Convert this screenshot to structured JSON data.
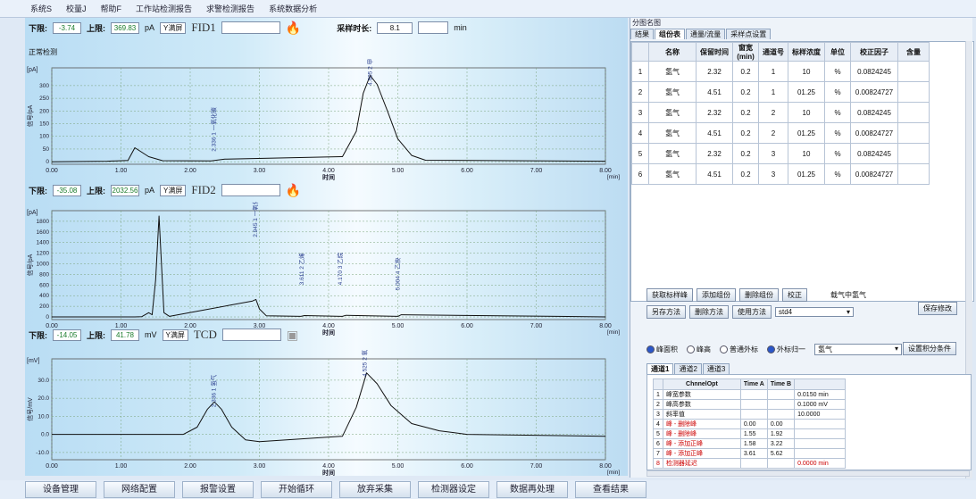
{
  "menu": [
    "系统S",
    "校量J",
    "帮助F",
    "工作站检测报告",
    "求警检测报告",
    "系统数据分析"
  ],
  "channels": [
    {
      "low_label": "下限:",
      "low": "-3.74",
      "high_label": "上限:",
      "high": "369.83",
      "unit": "pA",
      "view": "Y满屏",
      "name": "FID1",
      "extra": {
        "label": "采样时长:",
        "value": "8.1",
        "unit": "min"
      },
      "status": "正常检测",
      "yunit": "[pA]",
      "ylabel": "信号/pA",
      "yticks": [
        "300",
        "250",
        "200",
        "150",
        "100",
        "50",
        "0"
      ],
      "peaks_labels": [
        "2.336 1 一氧化碳",
        "4.605 2 甲烷"
      ]
    },
    {
      "low_label": "下限:",
      "low": "-35.08",
      "high_label": "上限:",
      "high": "2032.56",
      "unit": "pA",
      "view": "Y满屏",
      "name": "FID2",
      "yunit": "[pA]",
      "ylabel": "信号/pA",
      "yticks": [
        "1800",
        "1600",
        "1400",
        "1200",
        "1000",
        "800",
        "600",
        "400",
        "200",
        "0"
      ],
      "peaks_labels": [
        "2.945 1 一氧化碳",
        "3.611 2 乙烯",
        "4.170 3 乙烷",
        "5.004 4 乙炔"
      ]
    },
    {
      "low_label": "下限:",
      "low": "-14.05",
      "high_label": "上限:",
      "high": "41.78",
      "unit": "mV",
      "view": "Y满屏",
      "name": "TCD",
      "yunit": "[mV]",
      "ylabel": "信号/mV",
      "yticks": [
        "30.0",
        "20.0",
        "10.0",
        "0.0",
        "-10.0"
      ],
      "peaks_labels": [
        "2.336 1 氢气",
        "4.525 2 氧气"
      ]
    }
  ],
  "xaxis": {
    "ticks": [
      "0.00",
      "1.00",
      "2.00",
      "3.00",
      "4.00",
      "5.00",
      "6.00",
      "7.00",
      "8.00"
    ],
    "label": "时间",
    "unit": "[min]"
  },
  "chart_data": [
    {
      "type": "line",
      "title": "FID1",
      "xlabel": "时间",
      "ylabel": "信号/pA",
      "xlim": [
        0,
        8
      ],
      "ylim": [
        -10,
        370
      ],
      "series": [
        {
          "x": [
            0,
            0.8,
            1.1,
            1.2,
            1.4,
            1.6,
            2.3,
            2.5,
            4.2,
            4.4,
            4.5,
            4.6,
            4.7,
            4.85,
            5.0,
            5.2,
            5.4,
            8.0
          ],
          "y": [
            0,
            2,
            5,
            55,
            20,
            4,
            3,
            10,
            20,
            120,
            270,
            340,
            305,
            200,
            90,
            25,
            6,
            2
          ]
        }
      ]
    },
    {
      "type": "line",
      "title": "FID2",
      "xlabel": "时间",
      "ylabel": "信号/pA",
      "xlim": [
        0,
        8
      ],
      "ylim": [
        -50,
        2000
      ],
      "series": [
        {
          "x": [
            0,
            1.2,
            1.3,
            1.4,
            1.45,
            1.5,
            1.55,
            1.62,
            1.7,
            2.9,
            2.95,
            3.0,
            3.1,
            3.6,
            3.65,
            4.2,
            4.25,
            5.0,
            5.05,
            8.0
          ],
          "y": [
            0,
            0,
            5,
            80,
            40,
            700,
            1900,
            80,
            10,
            300,
            330,
            150,
            20,
            10,
            25,
            10,
            30,
            10,
            40,
            0
          ]
        }
      ]
    },
    {
      "type": "line",
      "title": "TCD",
      "xlabel": "时间",
      "ylabel": "信号/mV",
      "xlim": [
        0,
        8
      ],
      "ylim": [
        -14,
        41.8
      ],
      "series": [
        {
          "x": [
            0,
            1.9,
            2.1,
            2.25,
            2.35,
            2.45,
            2.6,
            2.8,
            3.0,
            4.2,
            4.4,
            4.55,
            4.7,
            4.9,
            5.2,
            5.6,
            6.0,
            8.0
          ],
          "y": [
            0,
            0,
            4,
            14,
            18,
            14,
            4,
            -3,
            -4,
            -1,
            15,
            34,
            28,
            16,
            6,
            2,
            0,
            -1
          ]
        }
      ]
    }
  ],
  "right": {
    "title": "分图名图",
    "tabs": [
      "结果",
      "组份表",
      "通量/流量",
      "采样点设置"
    ],
    "table": {
      "headers": [
        "",
        "名称",
        "保留时间",
        "窗宽(min)",
        "通道号",
        "标样浓度",
        "单位",
        "校正因子",
        "含量"
      ],
      "rows": [
        [
          "1",
          "氢气",
          "2.32",
          "0.2",
          "1",
          "10",
          "%",
          "0.0824245",
          ""
        ],
        [
          "2",
          "氢气",
          "4.51",
          "0.2",
          "1",
          "01.25",
          "%",
          "0.00824727",
          ""
        ],
        [
          "3",
          "氢气",
          "2.32",
          "0.2",
          "2",
          "10",
          "%",
          "0.0824245",
          ""
        ],
        [
          "4",
          "氢气",
          "4.51",
          "0.2",
          "2",
          "01.25",
          "%",
          "0.00824727",
          ""
        ],
        [
          "5",
          "氢气",
          "2.32",
          "0.2",
          "3",
          "10",
          "%",
          "0.0824245",
          ""
        ],
        [
          "6",
          "氢气",
          "4.51",
          "0.2",
          "3",
          "01.25",
          "%",
          "0.00824727",
          ""
        ]
      ]
    },
    "buttons1": [
      "获取标样峰",
      "添加组份",
      "删除组份",
      "校正"
    ],
    "carrier_label": "载气中氢气",
    "save_btn": "保存修改",
    "buttons2": [
      "另存方法",
      "删除方法",
      "使用方法"
    ],
    "method_value": "std4",
    "radios": [
      "峰面积",
      "峰高",
      "普通外标",
      "外标归一"
    ],
    "radio_select": "氢气",
    "integral_btn": "设置积分条件",
    "subtabs": [
      "通道1",
      "通道2",
      "通道3"
    ],
    "events": {
      "headers": [
        "",
        "ChnnelOpt",
        "Time A",
        "Time B",
        ""
      ],
      "rows": [
        [
          "1",
          "峰宽参数",
          "",
          "",
          "0.0150 min"
        ],
        [
          "2",
          "峰高参数",
          "",
          "",
          "0.1000 mV"
        ],
        [
          "3",
          "斜率值",
          "",
          "",
          "10.0000"
        ],
        [
          "4",
          "峰 - 删除峰",
          "0.00",
          "0.00",
          ""
        ],
        [
          "5",
          "峰 - 删除峰",
          "1.55",
          "1.92",
          ""
        ],
        [
          "6",
          "峰 - 添加正峰",
          "1.58",
          "3.22",
          ""
        ],
        [
          "7",
          "峰 - 添加正峰",
          "3.61",
          "5.62",
          ""
        ],
        [
          "8",
          "检测器延迟",
          "",
          "",
          "0.0000 min"
        ]
      ]
    }
  },
  "bottom_buttons": [
    "设备管理",
    "网络配置",
    "报警设置",
    "开始循环",
    "放弃采集",
    "检测器设定",
    "数据再处理",
    "查看结果"
  ]
}
